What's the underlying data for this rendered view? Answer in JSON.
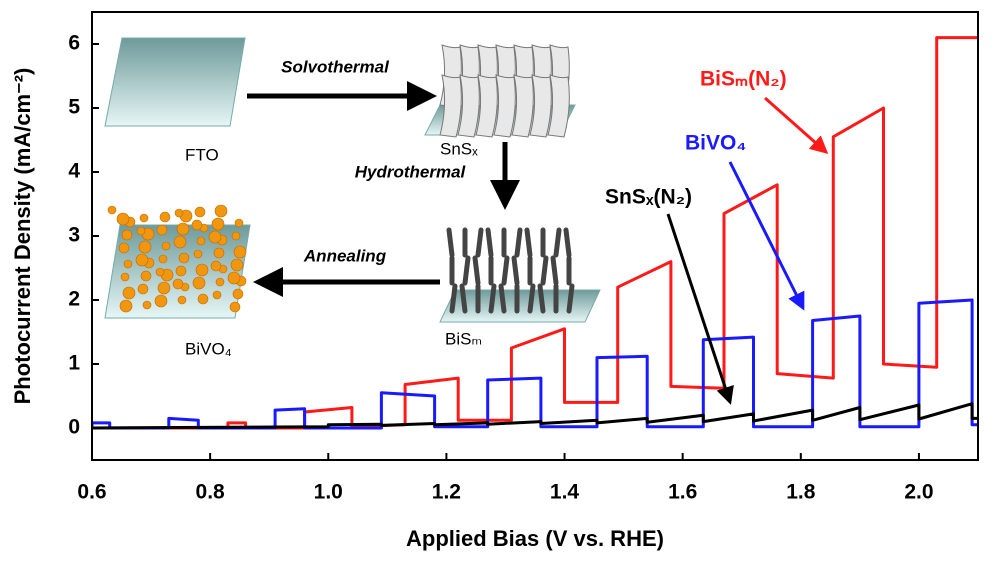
{
  "chart_data": {
    "type": "line",
    "x_label": "Applied Bias (V vs. RHE)",
    "y_label": "Photocurrent Density (mA/cm⁻²)",
    "xlim": [
      0.6,
      2.1
    ],
    "ylim": [
      -0.5,
      6.5
    ],
    "xticks": [
      0.6,
      0.8,
      {
        "value": 1,
        "label": "1.0"
      },
      1.2,
      1.4,
      1.6,
      1.8,
      {
        "value": 2,
        "label": "2.0"
      }
    ],
    "yticks": [
      0,
      1,
      2,
      3,
      4,
      5,
      6
    ],
    "series": [
      {
        "name": "BiSₘ(N₂)",
        "color": "#ff1a1a",
        "x": [
          0.6,
          0.83,
          0.83,
          0.86,
          0.86,
          0.96,
          0.96,
          1.04,
          1.04,
          1.13,
          1.13,
          1.22,
          1.22,
          1.31,
          1.31,
          1.4,
          1.4,
          1.49,
          1.49,
          1.58,
          1.58,
          1.67,
          1.67,
          1.76,
          1.76,
          1.855,
          1.855,
          1.94,
          1.94,
          2.03,
          2.03,
          2.1
        ],
        "values": [
          0,
          0,
          0.08,
          0.08,
          0,
          0,
          0.25,
          0.32,
          0.02,
          0.05,
          0.68,
          0.78,
          0.12,
          0.12,
          1.25,
          1.55,
          0.4,
          0.4,
          2.2,
          2.6,
          0.65,
          0.62,
          3.35,
          3.8,
          0.85,
          0.78,
          4.55,
          5.0,
          1.0,
          0.95,
          6.1,
          6.1
        ]
      },
      {
        "name": "BiVO₄",
        "color": "#1a1aff",
        "x": [
          0.6,
          0.6,
          0.63,
          0.63,
          0.73,
          0.73,
          0.78,
          0.78,
          0.91,
          0.91,
          0.96,
          0.96,
          1.09,
          1.09,
          1.18,
          1.18,
          1.27,
          1.27,
          1.36,
          1.36,
          1.455,
          1.455,
          1.54,
          1.54,
          1.635,
          1.635,
          1.72,
          1.72,
          1.82,
          1.82,
          1.9,
          1.9,
          2.0,
          2.0,
          2.09,
          2.09,
          2.1
        ],
        "values": [
          0,
          0.08,
          0.08,
          0,
          0,
          0.15,
          0.12,
          0,
          0,
          0.28,
          0.3,
          0,
          0,
          0.55,
          0.5,
          0.02,
          0.02,
          0.75,
          0.78,
          0.02,
          0.02,
          1.1,
          1.12,
          0.02,
          0.02,
          1.38,
          1.42,
          0.02,
          0.02,
          1.68,
          1.75,
          0.02,
          0.02,
          1.95,
          2.0,
          0.05,
          0.05
        ]
      },
      {
        "name": "SnSₓ(N₂)",
        "color": "#000000",
        "x": [
          0.6,
          1.0,
          1.0,
          1.09,
          1.09,
          1.18,
          1.18,
          1.27,
          1.27,
          1.36,
          1.36,
          1.455,
          1.455,
          1.54,
          1.54,
          1.635,
          1.635,
          1.72,
          1.72,
          1.82,
          1.82,
          1.9,
          1.9,
          2.0,
          2.0,
          2.09,
          2.09,
          2.1
        ],
        "values": [
          0,
          0.02,
          0.05,
          0.06,
          0.04,
          0.07,
          0.05,
          0.08,
          0.06,
          0.1,
          0.07,
          0.12,
          0.08,
          0.15,
          0.09,
          0.2,
          0.1,
          0.22,
          0.11,
          0.28,
          0.12,
          0.32,
          0.13,
          0.36,
          0.14,
          0.38,
          0.15,
          0.15
        ]
      }
    ],
    "inset": {
      "steps": [
        "Solvothermal",
        "Hydrothermal",
        "Annealing"
      ],
      "labels": [
        "FTO",
        "SnSₓ",
        "BiSₘ",
        "BiVO₄"
      ]
    }
  }
}
